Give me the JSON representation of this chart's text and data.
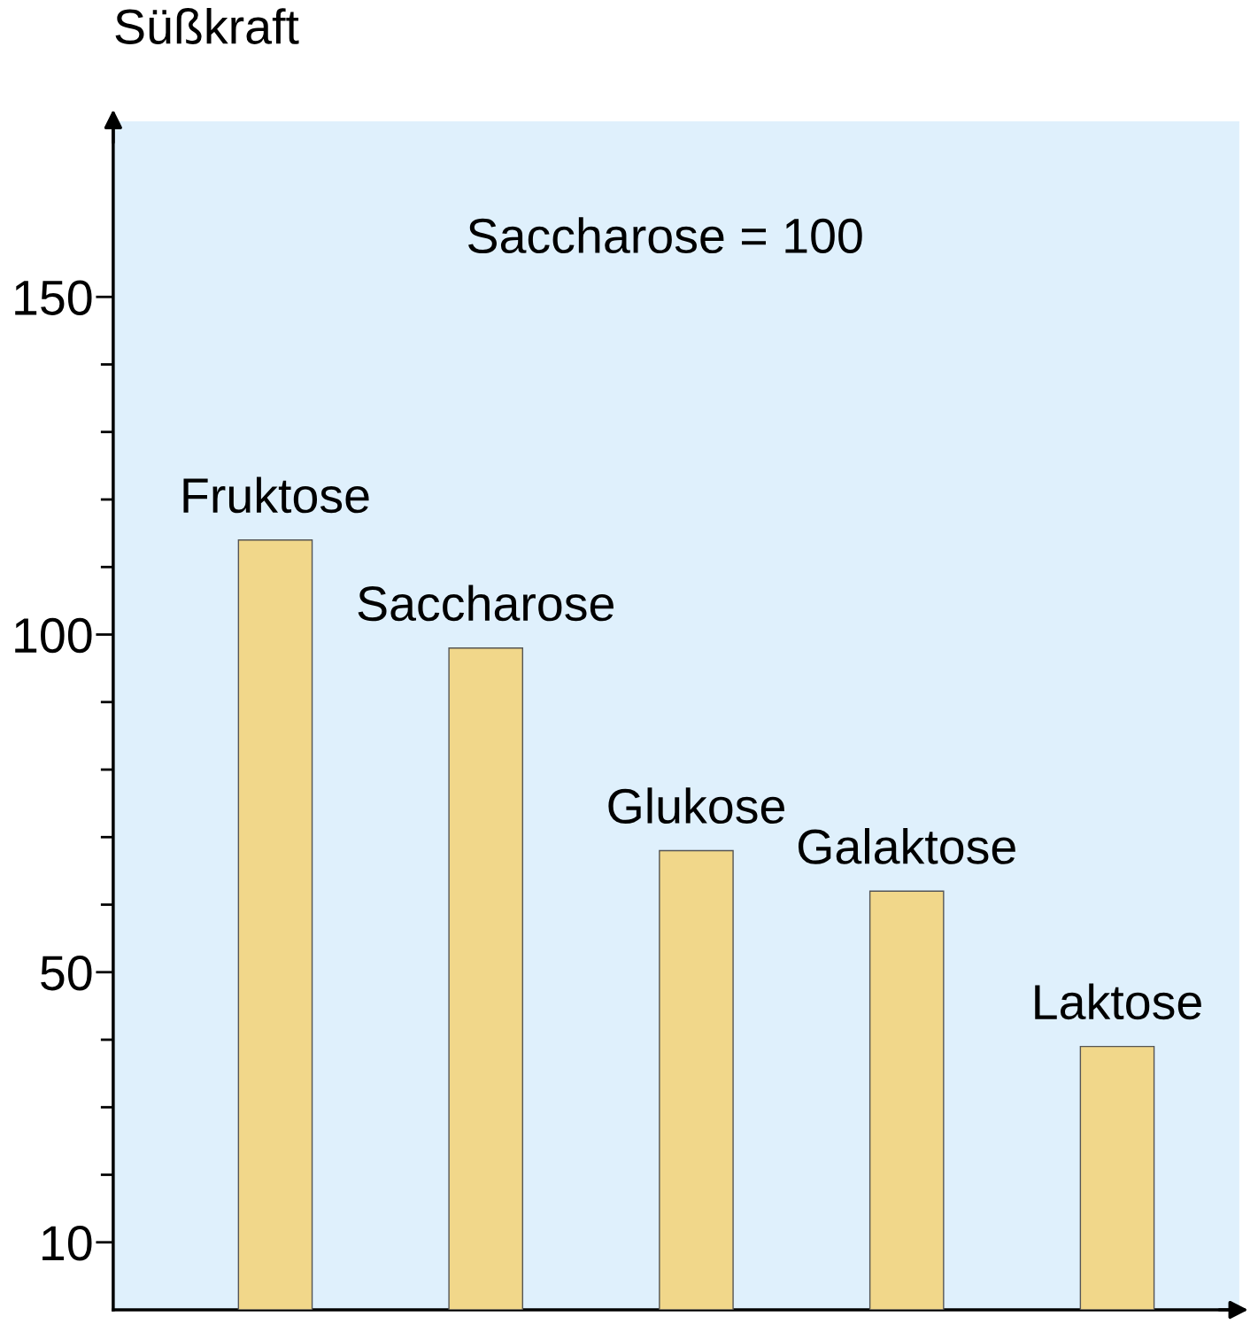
{
  "chart_data": {
    "type": "bar",
    "ylabel": "Süßkraft",
    "categories": [
      "Fruktose",
      "Saccharose",
      "Glukose",
      "Galaktose",
      "Laktose"
    ],
    "values": [
      114,
      98,
      68,
      62,
      39
    ],
    "color": "#f1d78a",
    "ylim": [
      0,
      176
    ],
    "yticks": [
      10,
      {
        "value": 20,
        "label": null
      },
      {
        "value": 30,
        "label": null
      },
      {
        "value": 40,
        "label": null
      },
      50,
      {
        "value": 60,
        "label": null
      },
      {
        "value": 70,
        "label": null
      },
      {
        "value": 80,
        "label": null
      },
      {
        "value": 90,
        "label": null
      },
      100,
      {
        "value": 110,
        "label": null
      },
      {
        "value": 120,
        "label": null
      },
      {
        "value": 130,
        "label": null
      },
      {
        "value": 140,
        "label": null
      },
      150
    ],
    "annotations": [
      "Saccharose = 100"
    ],
    "grid": false,
    "legend": false,
    "tick_labels": "y"
  }
}
